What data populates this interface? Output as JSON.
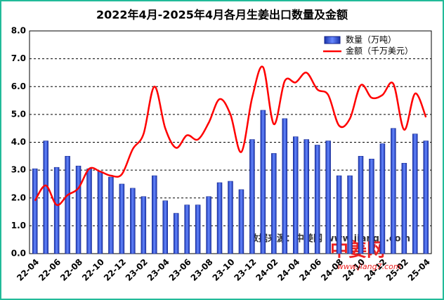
{
  "chart_data": {
    "type": "bar",
    "title": "2022年4月-2025年4月各月生姜出口数量及金额",
    "categories": [
      "22-04",
      null,
      "22-06",
      null,
      "22-08",
      null,
      "22-10",
      null,
      "22-12",
      null,
      "23-02",
      null,
      "23-04",
      null,
      "23-06",
      null,
      "23-08",
      null,
      "23-10",
      null,
      "23-12",
      null,
      "24-02",
      null,
      "24-04",
      null,
      "24-06",
      null,
      "24-08",
      null,
      "24-10",
      null,
      "24-12",
      null,
      "25-02",
      null,
      "25-04"
    ],
    "series": [
      {
        "name": "数量（万吨）",
        "color": "#3355dd",
        "type": "bar",
        "values": [
          3.05,
          4.05,
          3.1,
          3.5,
          3.15,
          3.05,
          2.95,
          2.75,
          2.5,
          2.35,
          2.05,
          2.8,
          1.9,
          1.45,
          1.75,
          1.75,
          2.05,
          2.55,
          2.6,
          2.3,
          4.1,
          5.15,
          3.6,
          4.85,
          4.2,
          4.1,
          3.9,
          4.05,
          2.8,
          2.8,
          3.5,
          3.4,
          3.95,
          4.5,
          3.25,
          4.3,
          4.05
        ]
      },
      {
        "name": "金额（千万美元）",
        "color": "#ff0000",
        "type": "line",
        "values": [
          1.9,
          2.45,
          1.75,
          2.1,
          2.35,
          3.05,
          2.95,
          2.8,
          2.85,
          3.75,
          4.3,
          6.0,
          4.5,
          3.8,
          4.25,
          4.1,
          4.7,
          5.55,
          5.0,
          3.65,
          5.6,
          6.7,
          4.65,
          6.2,
          6.15,
          6.5,
          5.9,
          5.7,
          4.6,
          4.85,
          6.05,
          5.6,
          5.7,
          6.1,
          4.45,
          5.75,
          4.9
        ]
      }
    ],
    "ylim": [
      0,
      8
    ],
    "yticks": [
      {
        "value": 0,
        "label": "0.0"
      },
      {
        "value": 1,
        "label": "1.0"
      },
      {
        "value": 2,
        "label": "2.0"
      },
      {
        "value": 3,
        "label": "3.0"
      },
      {
        "value": 4,
        "label": "4.0"
      },
      {
        "value": 5,
        "label": "5.0"
      },
      {
        "value": 6,
        "label": "6.0"
      },
      {
        "value": 7,
        "label": "7.0"
      },
      {
        "value": 8,
        "label": "8.0"
      }
    ],
    "grid": true,
    "legend": "top-right",
    "annotations": [
      "数据来源：中姜网 www.jiang7.com",
      "中姜网",
      "www.jiang7.com"
    ]
  }
}
